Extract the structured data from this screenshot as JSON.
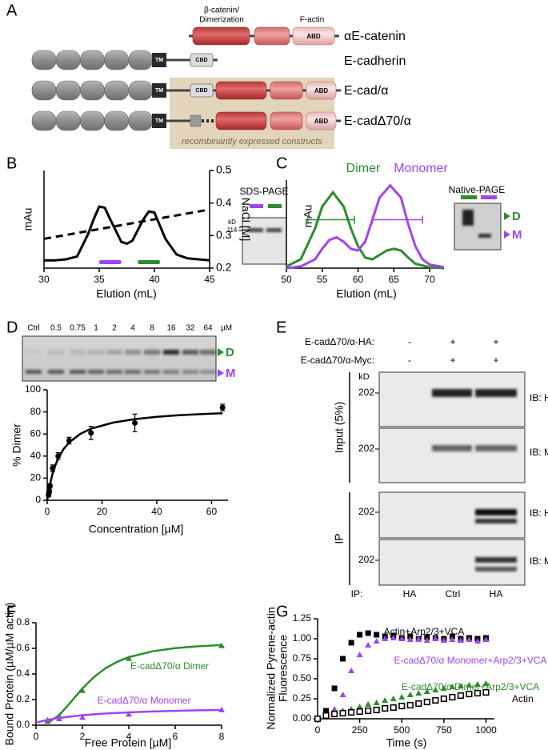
{
  "panel_labels": [
    "A",
    "B",
    "C",
    "D",
    "E",
    "F",
    "G"
  ],
  "diagram": {
    "annotations": [
      "β-catenin/",
      "Dimerization",
      "F-actin"
    ],
    "domains": {
      "tm": "TM",
      "cbd": "CBD",
      "abd": "ABD"
    },
    "rows": [
      "αE-catenin",
      "E-cadherin",
      "E-cad/α",
      "E-cadΔ70/α"
    ],
    "box_caption": "recombinantly expressed constructs"
  },
  "gels": {
    "sds": {
      "title": "SDS-PAGE",
      "unit": "kD",
      "marker": "114"
    },
    "native": {
      "title": "Native-PAGE",
      "bands": [
        "D",
        "M"
      ]
    },
    "titration": {
      "lanes": [
        "Ctrl",
        "0.5",
        "0.75",
        "1",
        "2",
        "4",
        "8",
        "16",
        "32",
        "64"
      ],
      "unit": "µM",
      "bands": [
        "D",
        "M"
      ]
    }
  },
  "western": {
    "conditions": [
      {
        "label": "E-cadΔ70/α-HA:",
        "lanes": [
          "-",
          "+",
          "+"
        ]
      },
      {
        "label": "E-cadΔ70/α-Myc:",
        "lanes": [
          "-",
          "+",
          "+"
        ]
      }
    ],
    "unit": "kD",
    "marker": "202",
    "sections": [
      "Input (5%)",
      "IP"
    ],
    "blots": [
      "IB: HA",
      "IB: Myc",
      "IB: HA",
      "IB: Myc"
    ],
    "ip_label": "IP:",
    "ip_lanes": [
      "HA",
      "Ctrl",
      "HA"
    ]
  },
  "chart_data": [
    {
      "type": "line",
      "y_label": "mAu",
      "x_label": "Elution (mL)",
      "y2_label": "NaCl [M]",
      "xlim": [
        30,
        45
      ],
      "xticks": [
        30,
        35,
        40,
        45
      ],
      "ylim": [
        0,
        1
      ],
      "y2lim": [
        0.2,
        0.5
      ],
      "y2ticks": [
        0.2,
        0.3,
        0.4,
        0.5
      ],
      "series": [
        {
          "color": "#000000",
          "x": [
            30,
            31,
            32,
            33,
            34,
            34.5,
            35,
            35.5,
            36,
            37,
            37.5,
            38,
            39,
            39.5,
            40,
            41,
            42,
            43,
            44,
            45
          ],
          "values": [
            0.08,
            0.08,
            0.09,
            0.12,
            0.35,
            0.5,
            0.63,
            0.62,
            0.5,
            0.27,
            0.25,
            0.28,
            0.5,
            0.58,
            0.57,
            0.3,
            0.14,
            0.1,
            0.09,
            0.08
          ]
        },
        {
          "color": "#000000",
          "dashed": true,
          "axis": "y2",
          "x": [
            30,
            45
          ],
          "values": [
            0.29,
            0.38
          ]
        }
      ],
      "fractions": [
        {
          "color": "#a044f0",
          "range": [
            35,
            37
          ]
        },
        {
          "color": "#2d8c2d",
          "range": [
            38.5,
            40.5
          ]
        }
      ]
    },
    {
      "type": "line",
      "y_label": "mAu",
      "x_label": "Elution (mL)",
      "xlim": [
        50,
        72
      ],
      "xticks": [
        50,
        55,
        60,
        65,
        70
      ],
      "ylim": [
        0,
        1
      ],
      "series": [
        {
          "name": "Dimer",
          "color": "#2d8c2d",
          "x": [
            50,
            52,
            54,
            55,
            56.5,
            58,
            59,
            60,
            61,
            62,
            63,
            64,
            65,
            66,
            67,
            68,
            70,
            72
          ],
          "values": [
            0.02,
            0.1,
            0.45,
            0.7,
            0.86,
            0.7,
            0.45,
            0.25,
            0.12,
            0.1,
            0.15,
            0.2,
            0.22,
            0.2,
            0.12,
            0.05,
            0.01,
            0
          ],
          "range": {
            "y": 0.55,
            "x": [
              53,
              59.5
            ]
          }
        },
        {
          "name": "Monomer",
          "color": "#a044f0",
          "x": [
            50,
            52,
            54,
            55,
            56,
            57,
            58,
            59,
            60,
            61,
            62,
            63,
            64.5,
            66,
            67,
            68,
            69,
            70,
            72
          ],
          "values": [
            0,
            0.02,
            0.1,
            0.22,
            0.32,
            0.35,
            0.3,
            0.22,
            0.2,
            0.3,
            0.55,
            0.8,
            0.94,
            0.8,
            0.5,
            0.25,
            0.1,
            0.04,
            0.01
          ],
          "range": {
            "y": 0.55,
            "x": [
              62,
              69
            ]
          }
        }
      ]
    },
    {
      "type": "scatter",
      "y_label": "% Dimer",
      "x_label": "Concentration [µM]",
      "xlim": [
        0,
        66
      ],
      "xticks": [
        0,
        20,
        40,
        60
      ],
      "ylim": [
        0,
        100
      ],
      "yticks": [
        0,
        20,
        40,
        60,
        80,
        100
      ],
      "series": [
        {
          "color": "#000000",
          "marker": "circle",
          "x": [
            0.5,
            0.75,
            1,
            2,
            4,
            8,
            16,
            32,
            64
          ],
          "values": [
            5,
            8,
            13,
            29,
            40,
            54,
            61,
            70,
            84
          ],
          "errors": [
            2,
            2,
            2,
            3,
            3,
            3,
            6,
            8,
            3
          ],
          "fit_x": [
            0,
            0.5,
            1,
            2,
            3,
            4,
            6,
            8,
            12,
            16,
            24,
            32,
            40,
            48,
            56,
            64
          ],
          "fit": [
            0,
            7.7,
            14.2,
            24.3,
            31.9,
            37.8,
            46.4,
            52.3,
            60.0,
            64.8,
            70.3,
            73.5,
            75.6,
            77.0,
            78.0,
            78.8
          ]
        }
      ]
    },
    {
      "type": "scatter",
      "y_label": "Bound Protein (µM/µM actin)",
      "x_label": "Free Protein [µM]",
      "xlim": [
        0,
        8
      ],
      "xticks": [
        0,
        2,
        4,
        6,
        8
      ],
      "ylim": [
        0,
        0.8
      ],
      "yticks": [
        {
          "value": 0,
          "label": "0.0"
        },
        0.2,
        0.4,
        0.6,
        0.8
      ],
      "series": [
        {
          "name": "E-cadΔ70/α Dimer",
          "color": "#2d8c2d",
          "marker": "triangle",
          "x": [
            0.5,
            1,
            2,
            4,
            8
          ],
          "values": [
            0.03,
            0.07,
            0.27,
            0.52,
            0.62
          ],
          "fit_x": [
            0.5,
            1,
            1.5,
            2,
            2.5,
            3,
            3.5,
            4,
            5,
            6,
            7,
            8
          ],
          "fit": [
            0.016,
            0.079,
            0.18,
            0.287,
            0.376,
            0.445,
            0.495,
            0.531,
            0.576,
            0.601,
            0.616,
            0.626
          ]
        },
        {
          "name": "E-cadΔ70/α Monomer",
          "color": "#a044f0",
          "marker": "triangle",
          "x": [
            0.5,
            1,
            2,
            4,
            8
          ],
          "values": [
            0.04,
            0.05,
            0.06,
            0.085,
            0.12
          ],
          "fit_x": [
            0,
            0.5,
            1,
            2,
            3,
            4,
            5,
            6,
            7,
            8
          ],
          "fit": [
            0.02,
            0.042,
            0.057,
            0.078,
            0.091,
            0.1,
            0.107,
            0.112,
            0.116,
            0.119
          ]
        }
      ]
    },
    {
      "type": "scatter",
      "y_label": [
        "Normalized Pyrene-actin",
        "Fluorescence"
      ],
      "x_label": "Time (s)",
      "xlim": [
        0,
        1050
      ],
      "xticks": [
        0,
        250,
        500,
        750,
        1000
      ],
      "ylim": [
        0,
        1.25
      ],
      "yticks": [
        {
          "value": 0,
          "label": "0.00"
        },
        {
          "value": 0.25,
          "label": "0.25"
        },
        {
          "value": 0.5,
          "label": "0.50"
        },
        {
          "value": 0.75,
          "label": "0.75"
        },
        {
          "value": 1,
          "label": "1.00"
        },
        {
          "value": 1.25,
          "label": "1.25"
        }
      ],
      "x": [
        0,
        50,
        100,
        150,
        200,
        250,
        300,
        350,
        400,
        450,
        500,
        550,
        600,
        650,
        700,
        750,
        800,
        850,
        900,
        950,
        1000
      ],
      "series": [
        {
          "name": "Actin+Arp2/3+VCA",
          "color": "#000000",
          "marker": "square",
          "values": [
            0,
            0.1,
            0.38,
            0.75,
            0.95,
            1.05,
            1.07,
            1.05,
            1.03,
            1.04,
            1.01,
            1.03,
            1.0,
            1.02,
            1.01,
            1.0,
            1.03,
            1.0,
            1.01,
            1.0,
            1.01
          ]
        },
        {
          "name": "E-cadΔ70/α Monomer+Arp2/3+VCA",
          "color": "#a044f0",
          "marker": "triangle",
          "values": [
            0,
            0.04,
            0.12,
            0.3,
            0.6,
            0.8,
            0.92,
            0.97,
            1.0,
            1.01,
            1.0,
            0.99,
            1.0,
            0.98,
            1.0,
            0.98,
            0.99,
            0.98,
            0.99,
            0.97,
            0.99
          ]
        },
        {
          "name": "E-cadΔ70/α Dimer+Arp2/3+VCA",
          "color": "#2d8c2d",
          "marker": "triangle",
          "values": [
            0,
            0.05,
            0.07,
            0.1,
            0.12,
            0.15,
            0.18,
            0.2,
            0.23,
            0.25,
            0.27,
            0.3,
            0.32,
            0.34,
            0.36,
            0.38,
            0.4,
            0.41,
            0.42,
            0.43,
            0.44
          ]
        },
        {
          "name": "Actin",
          "color": "#000000",
          "marker": "open-square",
          "values": [
            0,
            0.04,
            0.06,
            0.07,
            0.08,
            0.09,
            0.1,
            0.11,
            0.13,
            0.14,
            0.16,
            0.17,
            0.19,
            0.21,
            0.23,
            0.25,
            0.27,
            0.29,
            0.31,
            0.32,
            0.33
          ]
        }
      ]
    }
  ]
}
